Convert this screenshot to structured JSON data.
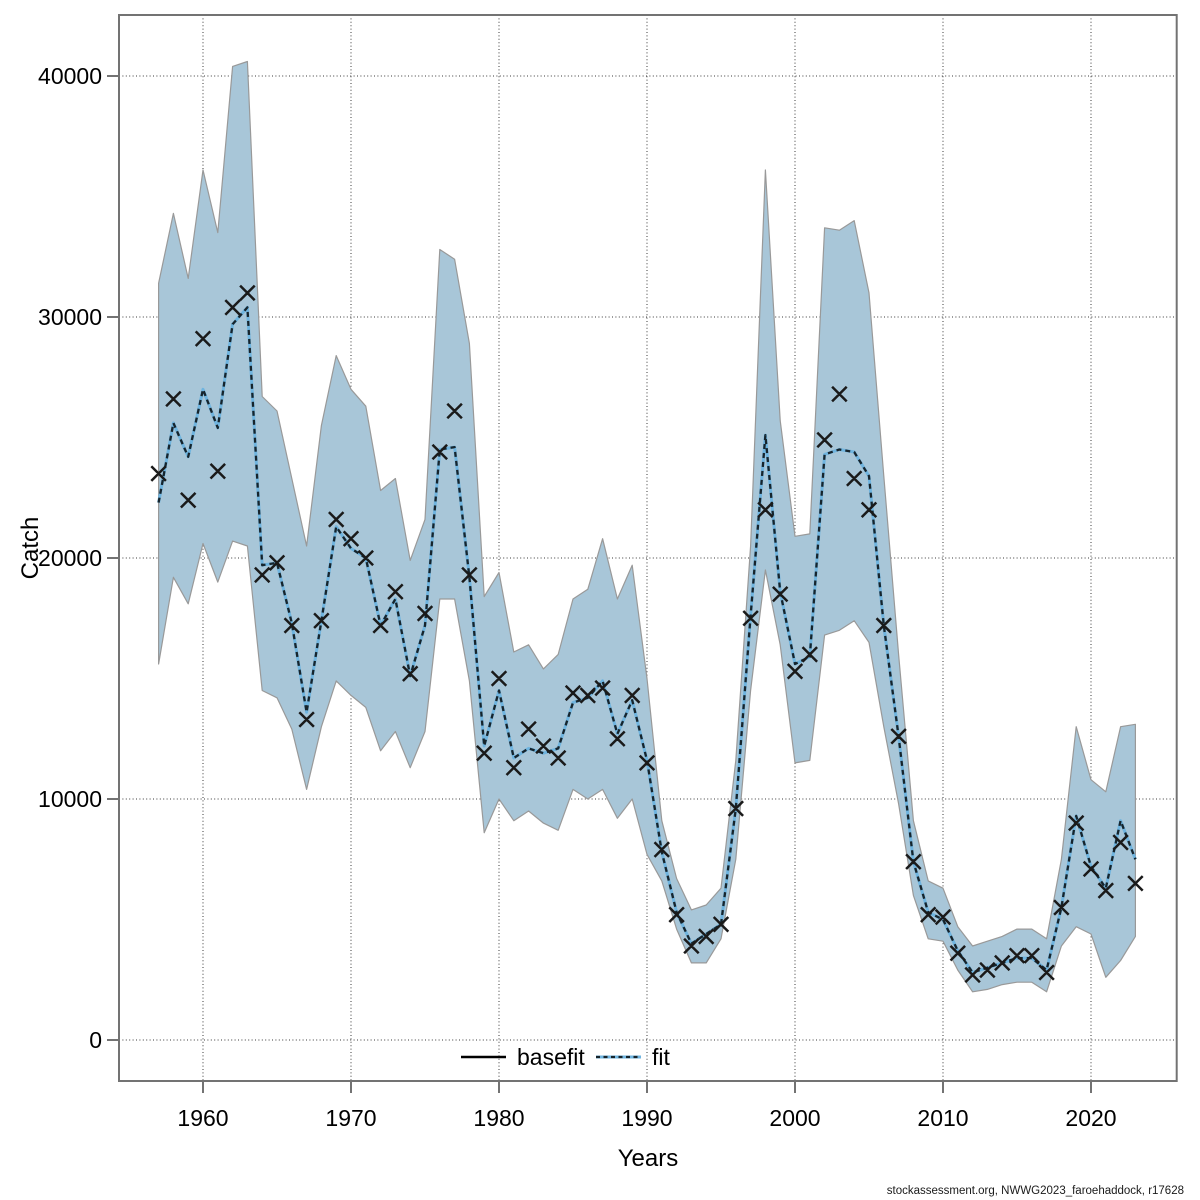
{
  "footer": "stockassessment.org, NWWG2023_faroehaddock, r17628",
  "chart_data": {
    "type": "line",
    "title": "",
    "xlabel": "Years",
    "ylabel": "Catch",
    "xlim": [
      1954.3,
      2025.8
    ],
    "ylim": [
      -1700,
      42500
    ],
    "grid": "dotted",
    "x_ticks": [
      1960,
      1970,
      1980,
      1990,
      2000,
      2010,
      2020
    ],
    "y_ticks": [
      0,
      10000,
      20000,
      30000,
      40000
    ],
    "legend": [
      {
        "label": "basefit",
        "style": "solid-black-line"
      },
      {
        "label": "fit",
        "style": "dotted-blue-line"
      }
    ],
    "series_note": "observed = X markers (catch data), fit = dotted line, band_lo/band_hi = confidence band",
    "years": [
      1957,
      1958,
      1959,
      1960,
      1961,
      1962,
      1963,
      1964,
      1965,
      1966,
      1967,
      1968,
      1969,
      1970,
      1971,
      1972,
      1973,
      1974,
      1975,
      1976,
      1977,
      1978,
      1979,
      1980,
      1981,
      1982,
      1983,
      1984,
      1985,
      1986,
      1987,
      1988,
      1989,
      1990,
      1991,
      1992,
      1993,
      1994,
      1995,
      1996,
      1997,
      1998,
      1999,
      2000,
      2001,
      2002,
      2003,
      2004,
      2005,
      2006,
      2007,
      2008,
      2009,
      2010,
      2011,
      2012,
      2013,
      2014,
      2015,
      2016,
      2017,
      2018,
      2019,
      2020,
      2021,
      2022,
      2023
    ],
    "observed": [
      23500,
      26600,
      22400,
      29100,
      23600,
      30400,
      31000,
      19300,
      19800,
      17200,
      13300,
      17400,
      21600,
      20800,
      20000,
      17200,
      18600,
      15200,
      17700,
      24400,
      26100,
      19300,
      11900,
      15000,
      11300,
      12900,
      12200,
      11700,
      14400,
      14300,
      14600,
      12500,
      14300,
      11500,
      7900,
      5200,
      3900,
      4300,
      4800,
      9600,
      17500,
      22000,
      18500,
      15300,
      16000,
      24900,
      26800,
      23300,
      22000,
      17200,
      12600,
      7400,
      5200,
      5100,
      3600,
      2700,
      2900,
      3200,
      3500,
      3500,
      2800,
      5500,
      9000,
      7100,
      6200,
      8200,
      6500
    ],
    "fit": [
      22300,
      25600,
      24200,
      27000,
      25400,
      29700,
      30400,
      19700,
      19800,
      17300,
      13600,
      17400,
      21300,
      20400,
      20000,
      17200,
      18300,
      15100,
      17200,
      24500,
      24600,
      19200,
      12200,
      14500,
      11700,
      12100,
      11900,
      12100,
      14000,
      14200,
      14900,
      12700,
      14100,
      11600,
      7800,
      5300,
      4000,
      4400,
      4800,
      9600,
      17600,
      25100,
      18600,
      15600,
      15900,
      24300,
      24500,
      24400,
      23400,
      17200,
      12600,
      7400,
      5300,
      5000,
      3700,
      2800,
      3000,
      3200,
      3400,
      3400,
      2900,
      5500,
      9300,
      7200,
      6300,
      9100,
      7500
    ],
    "band_lo": [
      15600,
      19200,
      18100,
      20600,
      19000,
      20700,
      20500,
      14500,
      14200,
      12900,
      10400,
      13000,
      14900,
      14300,
      13800,
      12000,
      12800,
      11300,
      12800,
      18300,
      18300,
      14900,
      8600,
      10000,
      9100,
      9500,
      9000,
      8700,
      10400,
      10000,
      10400,
      9200,
      10000,
      7700,
      6600,
      4600,
      3200,
      3200,
      4200,
      7500,
      14500,
      19500,
      16400,
      11500,
      11600,
      16800,
      17000,
      17400,
      16500,
      13000,
      9800,
      6000,
      4200,
      4100,
      2900,
      2000,
      2100,
      2300,
      2400,
      2400,
      2000,
      3900,
      4700,
      4400,
      2600,
      3300,
      4300
    ],
    "band_hi": [
      31400,
      34300,
      31600,
      36100,
      33500,
      40400,
      40600,
      26700,
      26100,
      23300,
      20500,
      25500,
      28400,
      27000,
      26300,
      22800,
      23300,
      19900,
      21600,
      32800,
      32400,
      28900,
      18400,
      19400,
      16100,
      16400,
      15400,
      16000,
      18300,
      18700,
      20800,
      18300,
      19700,
      15000,
      9100,
      6700,
      5400,
      5600,
      6300,
      11600,
      20500,
      36100,
      25700,
      20900,
      21000,
      33700,
      33600,
      34000,
      31000,
      23400,
      16000,
      9100,
      6600,
      6300,
      4700,
      3900,
      4100,
      4300,
      4600,
      4600,
      4200,
      7500,
      13000,
      10800,
      10300,
      13000,
      13100
    ],
    "colors": {
      "band_fill": "#a8c6d8",
      "band_edge": "#999999",
      "fit_base": "#6fb4df",
      "fit_dash": "#16242c",
      "basefit_line": "#000000",
      "marker": "#1a1a1a",
      "frame": "#737373",
      "grid": "#3a3a3a"
    }
  }
}
